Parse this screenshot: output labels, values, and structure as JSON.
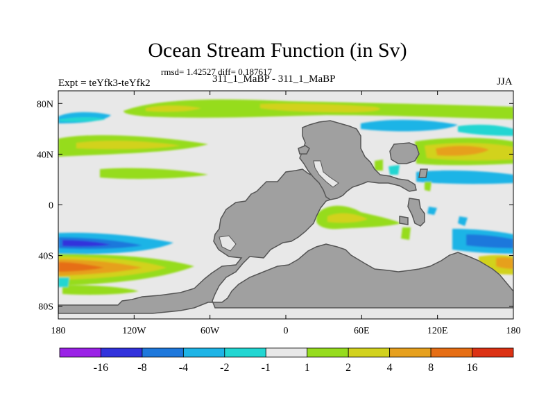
{
  "chart_data": {
    "type": "heatmap",
    "title": "Ocean Stream Function (in Sv)",
    "stats": "rmsd= 1.42527 diff= 0.187617",
    "subtitle": "311_1_MaBP - 311_1_MaBP",
    "experiment": "Expt = teYfk3-teYfk2",
    "season": "JJA",
    "x_ticks": [
      "180",
      "120W",
      "60W",
      "0",
      "60E",
      "120E",
      "180"
    ],
    "x_tick_values": [
      -180,
      -120,
      -60,
      0,
      60,
      120,
      180
    ],
    "y_ticks": [
      "80N",
      "40N",
      "0",
      "40S",
      "80S"
    ],
    "y_tick_values": [
      80,
      40,
      0,
      -40,
      -80
    ],
    "xlim": [
      -180,
      180
    ],
    "ylim": [
      -90,
      90
    ],
    "colorbar": {
      "levels": [
        "-16",
        "-8",
        "-4",
        "-2",
        "-1",
        "1",
        "2",
        "4",
        "8",
        "16"
      ],
      "colors": [
        "#9a22e6",
        "#3232dc",
        "#1e78dc",
        "#1eb4e6",
        "#22d6d2",
        "#e8e8e8",
        "#96dc1e",
        "#d2d21e",
        "#e6a01e",
        "#e66e14",
        "#dc3214"
      ]
    },
    "land_color": "#a0a0a0"
  }
}
